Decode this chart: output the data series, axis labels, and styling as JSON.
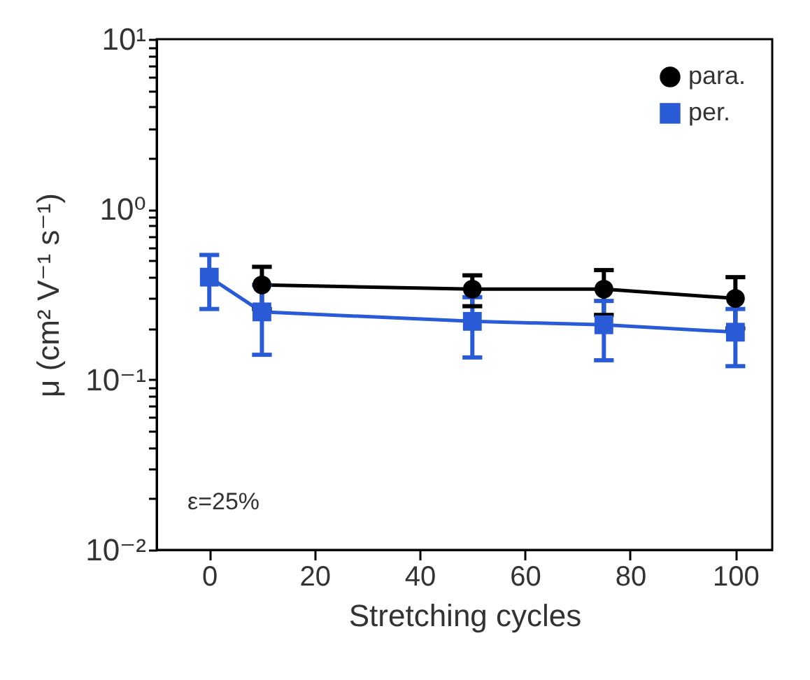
{
  "chart_data": {
    "type": "line",
    "xlabel": "Stretching cycles",
    "ylabel": "μ (cm² V⁻¹ s⁻¹)",
    "log": "y",
    "xlim": [
      -10,
      107
    ],
    "xticks": [
      0,
      20,
      40,
      60,
      80,
      100
    ],
    "ylim": [
      0.01,
      10
    ],
    "yticks": [
      {
        "value": 0.01,
        "label": "10⁻²"
      },
      {
        "value": 0.02,
        "label": null
      },
      {
        "value": 0.03,
        "label": null
      },
      {
        "value": 0.04,
        "label": null
      },
      {
        "value": 0.05,
        "label": null
      },
      {
        "value": 0.06,
        "label": null
      },
      {
        "value": 0.07,
        "label": null
      },
      {
        "value": 0.08,
        "label": null
      },
      {
        "value": 0.09,
        "label": null
      },
      {
        "value": 0.1,
        "label": "10⁻¹"
      },
      {
        "value": 0.2,
        "label": null
      },
      {
        "value": 0.3,
        "label": null
      },
      {
        "value": 0.4,
        "label": null
      },
      {
        "value": 0.5,
        "label": null
      },
      {
        "value": 0.6,
        "label": null
      },
      {
        "value": 0.7,
        "label": null
      },
      {
        "value": 0.8,
        "label": null
      },
      {
        "value": 0.9,
        "label": null
      },
      {
        "value": 1,
        "label": "10⁰"
      },
      {
        "value": 2,
        "label": null
      },
      {
        "value": 3,
        "label": null
      },
      {
        "value": 4,
        "label": null
      },
      {
        "value": 5,
        "label": null
      },
      {
        "value": 6,
        "label": null
      },
      {
        "value": 7,
        "label": null
      },
      {
        "value": 8,
        "label": null
      },
      {
        "value": 9,
        "label": null
      },
      {
        "value": 10,
        "label": "10¹"
      }
    ],
    "x": [
      0,
      10,
      50,
      75,
      100
    ],
    "series": [
      {
        "name": "para.",
        "color": "#000000",
        "marker": "circle",
        "values": [
          null,
          0.36,
          0.34,
          0.34,
          0.3
        ],
        "errors": [
          null,
          0.1,
          0.07,
          0.1,
          0.1
        ]
      },
      {
        "name": "per.",
        "color": "#2a5bd7",
        "marker": "square",
        "values": [
          0.4,
          0.25,
          0.22,
          0.21,
          0.19
        ],
        "errors": [
          0.14,
          0.11,
          0.085,
          0.08,
          0.07
        ]
      }
    ],
    "legend": "top right",
    "grid": false,
    "line_style": "solid",
    "annotations": [
      "ε=25%"
    ]
  }
}
